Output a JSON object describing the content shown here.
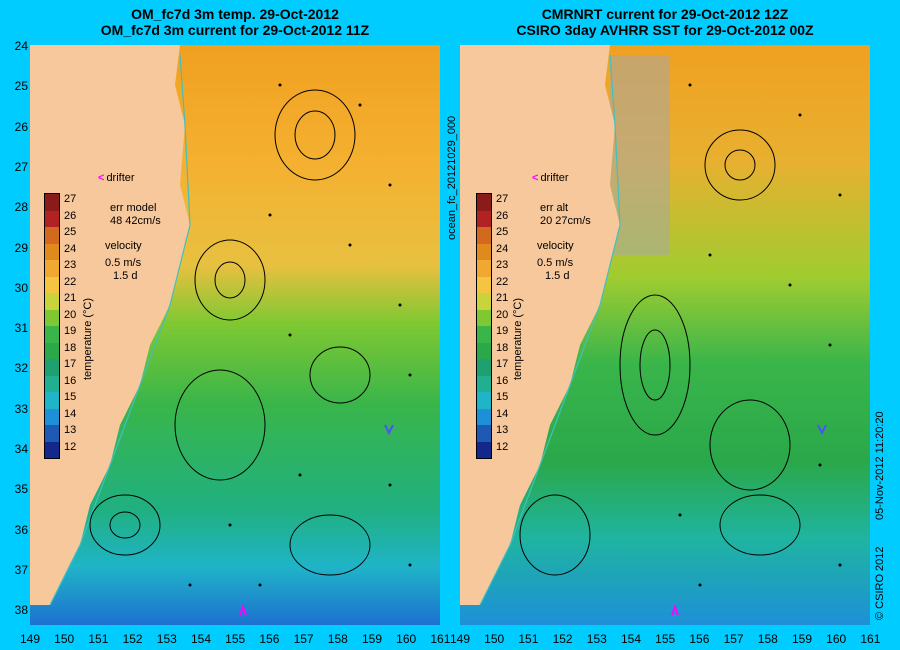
{
  "left_panel": {
    "title_line1": "OM_fc7d 3m temp. 29-Oct-2012",
    "title_line2": "OM_fc7d 3m current for 29-Oct-2012 11Z",
    "err_label": "err model",
    "err_value": "48 42cm/s",
    "velocity_label": "velocity",
    "velocity_value": "0.5 m/s",
    "velocity_days": "1.5 d",
    "drifter_label": "drifter"
  },
  "right_panel": {
    "title_line1": "CMRNRT current for 29-Oct-2012 12Z",
    "title_line2": "CSIRO 3day AVHRR SST for 29-Oct-2012 00Z",
    "err_label": "err alt",
    "err_value": "20 27cm/s",
    "velocity_label": "velocity",
    "velocity_value": "0.5 m/s",
    "velocity_days": "1.5 d",
    "drifter_label": "drifter"
  },
  "colorbar": {
    "label": "temperature (°C)",
    "ticks": [
      "27",
      "26",
      "25",
      "24",
      "23",
      "22",
      "21",
      "20",
      "19",
      "18",
      "17",
      "16",
      "15",
      "14",
      "13",
      "12"
    ],
    "colors": [
      "#8b1a1a",
      "#b22222",
      "#d2691e",
      "#e08a1e",
      "#f0a830",
      "#f5c542",
      "#c8d43a",
      "#7fc832",
      "#39b54a",
      "#2aa84a",
      "#1fa070",
      "#20b090",
      "#1fb4c8",
      "#1e90d8",
      "#1e5ab4",
      "#14288c"
    ]
  },
  "latitude_labels": [
    "24",
    "25",
    "26",
    "27",
    "28",
    "29",
    "30",
    "31",
    "32",
    "33",
    "34",
    "35",
    "36",
    "37",
    "38"
  ],
  "longitude_labels": [
    "149",
    "150",
    "151",
    "152",
    "153",
    "154",
    "155",
    "156",
    "157",
    "158",
    "159",
    "160",
    "161"
  ],
  "side_text_left": "ocean_fc_20121029_000",
  "side_text_right": "05-Nov-2012 11:20:20",
  "copyright": "© CSIRO 2012"
}
